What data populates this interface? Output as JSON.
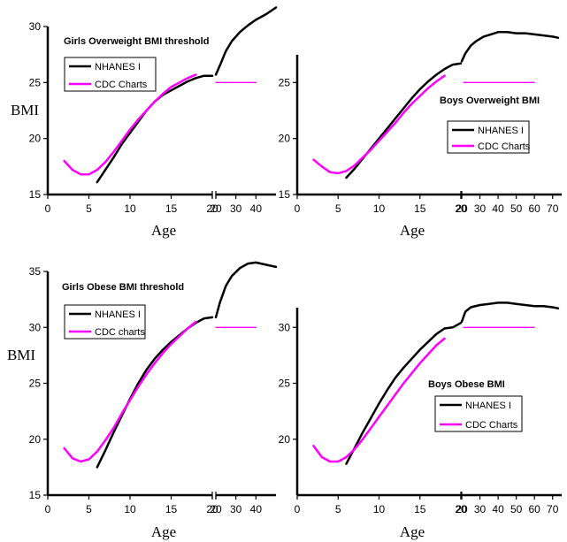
{
  "chart_data": [
    {
      "id": "girls-overweight",
      "type": "line",
      "title": "Girls Overweight BMI threshold",
      "xlabel": "Age",
      "ylabel": "BMI",
      "ylim": [
        15,
        30
      ],
      "yticks": [
        15,
        20,
        25,
        30
      ],
      "child_xlim": [
        0,
        20
      ],
      "child_xticks": [
        0,
        5,
        10,
        15,
        20
      ],
      "adult_xlim": [
        20,
        50
      ],
      "adult_xticks": [
        20,
        30,
        40
      ],
      "legend": [
        "NHANES I",
        "CDC Charts"
      ],
      "series": [
        {
          "name": "NHANES I",
          "color": "#000000",
          "x": [
            6,
            7,
            8,
            9,
            10,
            11,
            12,
            13,
            14,
            15,
            16,
            17,
            18,
            19,
            20
          ],
          "y": [
            16.1,
            17.2,
            18.3,
            19.5,
            20.5,
            21.5,
            22.5,
            23.3,
            23.9,
            24.3,
            24.7,
            25.1,
            25.4,
            25.6,
            25.6
          ]
        },
        {
          "name": "CDC Charts",
          "color": "#ff00ff",
          "x": [
            2,
            3,
            4,
            5,
            6,
            7,
            8,
            9,
            10,
            11,
            12,
            13,
            14,
            15,
            16,
            17,
            18
          ],
          "y": [
            18.0,
            17.2,
            16.8,
            16.8,
            17.2,
            17.9,
            18.8,
            19.8,
            20.8,
            21.7,
            22.5,
            23.3,
            24.0,
            24.6,
            25.0,
            25.4,
            25.7
          ]
        },
        {
          "name": "NHANES I",
          "segment": "adult",
          "color": "#000000",
          "x": [
            20,
            22,
            25,
            28,
            32,
            36,
            40,
            45,
            50
          ],
          "y": [
            25.7,
            26.5,
            27.8,
            28.7,
            29.5,
            30.1,
            30.6,
            31.1,
            31.7
          ]
        },
        {
          "name": "CDC Charts",
          "segment": "adult",
          "color": "#ff00ff",
          "x": [
            20,
            40
          ],
          "y": [
            25.0,
            25.0
          ]
        }
      ]
    },
    {
      "id": "boys-overweight",
      "type": "line",
      "title": "Boys Overweight BMI",
      "xlabel": "Age",
      "ylabel": "",
      "ylim": [
        15,
        30
      ],
      "yticks": [
        15,
        20,
        25
      ],
      "child_xlim": [
        0,
        20
      ],
      "child_xticks": [
        0,
        5,
        10,
        15,
        20
      ],
      "adult_xlim": [
        20,
        75
      ],
      "adult_xticks": [
        20,
        30,
        40,
        50,
        60,
        70
      ],
      "legend": [
        "NHANES I",
        "CDC Charts"
      ],
      "series": [
        {
          "name": "NHANES I",
          "color": "#000000",
          "x": [
            6,
            7,
            8,
            9,
            10,
            11,
            12,
            13,
            14,
            15,
            16,
            17,
            18,
            19,
            20
          ],
          "y": [
            16.5,
            17.3,
            18.2,
            19.1,
            20.0,
            20.9,
            21.8,
            22.7,
            23.6,
            24.4,
            25.1,
            25.7,
            26.2,
            26.6,
            26.7
          ]
        },
        {
          "name": "CDC Charts",
          "color": "#ff00ff",
          "x": [
            2,
            3,
            4,
            5,
            6,
            7,
            8,
            9,
            10,
            11,
            12,
            13,
            14,
            15,
            16,
            17,
            18
          ],
          "y": [
            18.1,
            17.5,
            17.0,
            16.9,
            17.1,
            17.6,
            18.3,
            19.0,
            19.8,
            20.6,
            21.4,
            22.3,
            23.1,
            23.8,
            24.5,
            25.1,
            25.6
          ]
        },
        {
          "name": "NHANES I",
          "segment": "adult",
          "color": "#000000",
          "x": [
            20,
            22,
            25,
            28,
            32,
            36,
            40,
            45,
            50,
            55,
            60,
            65,
            70,
            73
          ],
          "y": [
            26.9,
            27.6,
            28.3,
            28.7,
            29.1,
            29.3,
            29.5,
            29.5,
            29.4,
            29.4,
            29.3,
            29.2,
            29.1,
            29.0
          ]
        },
        {
          "name": "CDC Charts",
          "segment": "adult",
          "color": "#ff00ff",
          "x": [
            21,
            60
          ],
          "y": [
            25.0,
            25.0
          ]
        }
      ]
    },
    {
      "id": "girls-obese",
      "type": "line",
      "title": "Girls Obese BMI threshold",
      "xlabel": "Age",
      "ylabel": "BMI",
      "ylim": [
        15,
        35
      ],
      "yticks": [
        15,
        20,
        25,
        30,
        35
      ],
      "child_xlim": [
        0,
        20
      ],
      "child_xticks": [
        0,
        5,
        10,
        15,
        20
      ],
      "adult_xlim": [
        20,
        50
      ],
      "adult_xticks": [
        20,
        30,
        40
      ],
      "legend": [
        "NHANES I",
        "CDC charts"
      ],
      "series": [
        {
          "name": "NHANES I",
          "color": "#000000",
          "x": [
            6,
            7,
            8,
            9,
            10,
            11,
            12,
            13,
            14,
            15,
            16,
            17,
            18,
            19,
            20
          ],
          "y": [
            17.5,
            19.0,
            20.6,
            22.1,
            23.6,
            25.0,
            26.2,
            27.2,
            28.0,
            28.7,
            29.3,
            29.9,
            30.4,
            30.8,
            30.9
          ]
        },
        {
          "name": "CDC charts",
          "color": "#ff00ff",
          "x": [
            2,
            3,
            4,
            5,
            6,
            7,
            8,
            9,
            10,
            11,
            12,
            13,
            14,
            15,
            16,
            17,
            18
          ],
          "y": [
            19.2,
            18.3,
            18.0,
            18.2,
            18.9,
            19.9,
            21.0,
            22.3,
            23.5,
            24.7,
            25.8,
            26.8,
            27.7,
            28.5,
            29.2,
            29.9,
            30.5
          ]
        },
        {
          "name": "NHANES I",
          "segment": "adult",
          "color": "#000000",
          "x": [
            20,
            22,
            25,
            28,
            32,
            36,
            40,
            45,
            50
          ],
          "y": [
            30.9,
            32.2,
            33.7,
            34.6,
            35.3,
            35.7,
            35.8,
            35.6,
            35.4
          ]
        },
        {
          "name": "CDC charts",
          "segment": "adult",
          "color": "#ff00ff",
          "x": [
            20,
            40
          ],
          "y": [
            30.0,
            30.0
          ]
        }
      ]
    },
    {
      "id": "boys-obese",
      "type": "line",
      "title": "Boys Obese BMI",
      "xlabel": "Age",
      "ylabel": "",
      "ylim": [
        15,
        35
      ],
      "yticks": [
        20,
        25,
        30
      ],
      "child_xlim": [
        0,
        20
      ],
      "child_xticks": [
        0,
        5,
        10,
        15,
        20
      ],
      "adult_xlim": [
        20,
        75
      ],
      "adult_xticks": [
        20,
        30,
        40,
        50,
        60,
        70
      ],
      "legend": [
        "NHANES I",
        "CDC Charts"
      ],
      "series": [
        {
          "name": "NHANES I",
          "color": "#000000",
          "x": [
            6,
            7,
            8,
            9,
            10,
            11,
            12,
            13,
            14,
            15,
            16,
            17,
            18,
            19,
            20
          ],
          "y": [
            17.8,
            19.2,
            20.6,
            21.9,
            23.2,
            24.4,
            25.5,
            26.4,
            27.2,
            28.0,
            28.7,
            29.4,
            29.9,
            30.0,
            30.4
          ]
        },
        {
          "name": "CDC Charts",
          "color": "#ff00ff",
          "x": [
            2,
            3,
            4,
            5,
            6,
            7,
            8,
            9,
            10,
            11,
            12,
            13,
            14,
            15,
            16,
            17,
            18
          ],
          "y": [
            19.4,
            18.4,
            18.0,
            18.0,
            18.4,
            19.1,
            20.0,
            21.0,
            22.0,
            23.0,
            24.0,
            25.0,
            25.9,
            26.8,
            27.6,
            28.4,
            29.0
          ]
        },
        {
          "name": "NHANES I",
          "segment": "adult",
          "color": "#000000",
          "x": [
            20,
            22,
            25,
            30,
            35,
            40,
            45,
            50,
            55,
            60,
            65,
            70,
            73
          ],
          "y": [
            30.5,
            31.4,
            31.8,
            32.0,
            32.1,
            32.2,
            32.2,
            32.1,
            32.0,
            31.9,
            31.9,
            31.8,
            31.7
          ]
        },
        {
          "name": "CDC Charts",
          "segment": "adult",
          "color": "#ff00ff",
          "x": [
            21,
            60
          ],
          "y": [
            30.0,
            30.0
          ]
        }
      ]
    }
  ]
}
